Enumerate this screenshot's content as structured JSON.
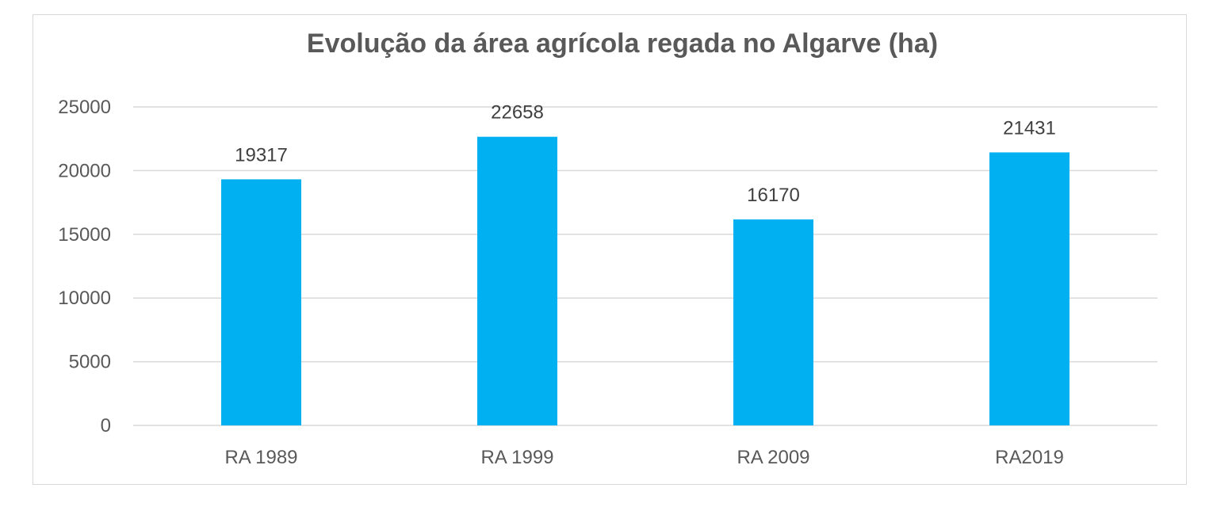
{
  "chart_data": {
    "type": "bar",
    "title": "Evolução da área agrícola regada no Algarve (ha)",
    "categories": [
      "RA 1989",
      "RA 1999",
      "RA 2009",
      "RA2019"
    ],
    "values": [
      19317,
      22658,
      16170,
      21431
    ],
    "yticks": [
      "0",
      "5000",
      "10000",
      "15000",
      "20000",
      "25000"
    ],
    "ylim": [
      0,
      25000
    ],
    "grid": true,
    "legend": "none",
    "bar_color": "#00b0f0"
  }
}
